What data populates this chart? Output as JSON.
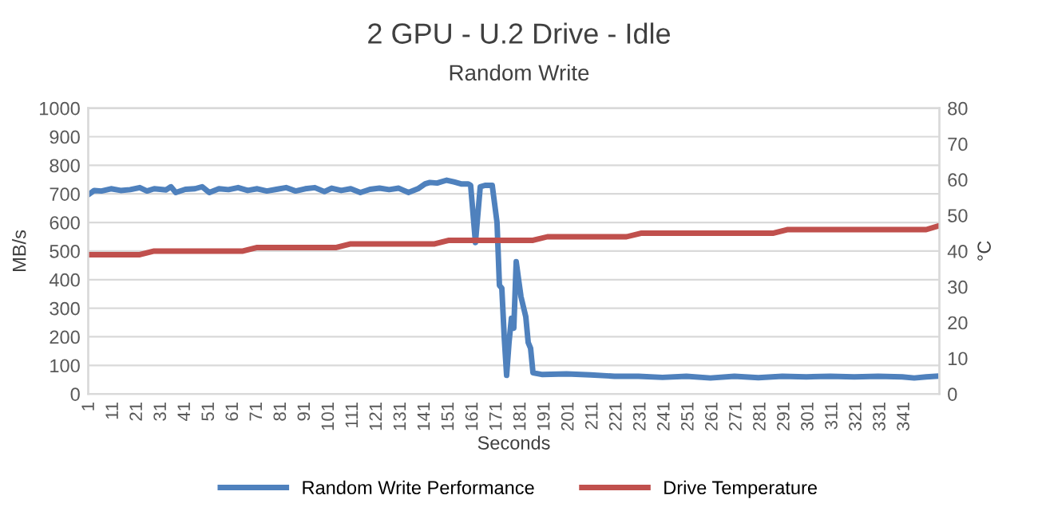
{
  "chart_data": {
    "type": "line",
    "title": "2 GPU - U.2 Drive - Idle",
    "subtitle": "Random Write",
    "xlabel": "Seconds",
    "ylabel": "MB/s",
    "y2label": "°C",
    "xlim": [
      0.5,
      355.5
    ],
    "xticks": [
      1,
      11,
      21,
      31,
      41,
      51,
      61,
      71,
      81,
      91,
      101,
      111,
      121,
      131,
      141,
      151,
      161,
      171,
      181,
      191,
      201,
      211,
      221,
      231,
      241,
      251,
      261,
      271,
      281,
      291,
      301,
      311,
      321,
      331,
      341
    ],
    "ylim": [
      0,
      1000
    ],
    "yticks": [
      0,
      100,
      200,
      300,
      400,
      500,
      600,
      700,
      800,
      900,
      1000
    ],
    "y2lim": [
      0,
      80
    ],
    "y2ticks": [
      0,
      10,
      20,
      30,
      40,
      50,
      60,
      70,
      80
    ],
    "grid": "y",
    "legend": "bottom",
    "line_style": "solid",
    "marker": "none",
    "series": [
      {
        "name": "Random Write Performance",
        "color": "#4f81bd",
        "x": [
          1,
          3,
          6,
          10,
          14,
          18,
          22,
          25,
          28,
          33,
          35,
          37,
          41,
          45,
          48,
          51,
          55,
          59,
          63,
          67,
          71,
          75,
          79,
          83,
          87,
          91,
          95,
          99,
          102,
          106,
          110,
          114,
          118,
          122,
          126,
          130,
          134,
          138,
          141,
          143,
          146,
          150,
          153,
          156,
          159,
          160,
          162,
          164,
          166,
          169,
          171,
          172,
          173,
          174,
          175,
          176,
          177,
          178,
          179,
          180,
          181,
          183,
          184,
          185,
          186,
          190,
          200,
          210,
          220,
          230,
          240,
          250,
          260,
          270,
          280,
          290,
          300,
          310,
          320,
          330,
          340,
          345,
          350,
          354
        ],
        "values": [
          700,
          712,
          710,
          718,
          712,
          715,
          722,
          710,
          718,
          714,
          725,
          705,
          716,
          718,
          725,
          705,
          718,
          715,
          722,
          712,
          718,
          710,
          716,
          722,
          710,
          718,
          722,
          708,
          720,
          712,
          718,
          705,
          716,
          720,
          715,
          720,
          705,
          718,
          735,
          740,
          738,
          748,
          742,
          735,
          735,
          730,
          530,
          725,
          730,
          730,
          600,
          380,
          370,
          200,
          65,
          180,
          265,
          230,
          463,
          400,
          340,
          270,
          180,
          160,
          74,
          68,
          70,
          67,
          62,
          62,
          58,
          62,
          56,
          62,
          57,
          62,
          60,
          62,
          60,
          62,
          60,
          56,
          60,
          62
        ]
      },
      {
        "name": "Drive Temperature",
        "color": "#c0504d",
        "axis": "y2",
        "x": [
          1,
          22,
          28,
          65,
          71,
          104,
          110,
          145,
          151,
          186,
          192,
          225,
          231,
          286,
          292,
          350,
          355
        ],
        "values": [
          39,
          39,
          40,
          40,
          41,
          41,
          42,
          42,
          43,
          43,
          44,
          44,
          45,
          45,
          46,
          46,
          47
        ]
      }
    ]
  }
}
